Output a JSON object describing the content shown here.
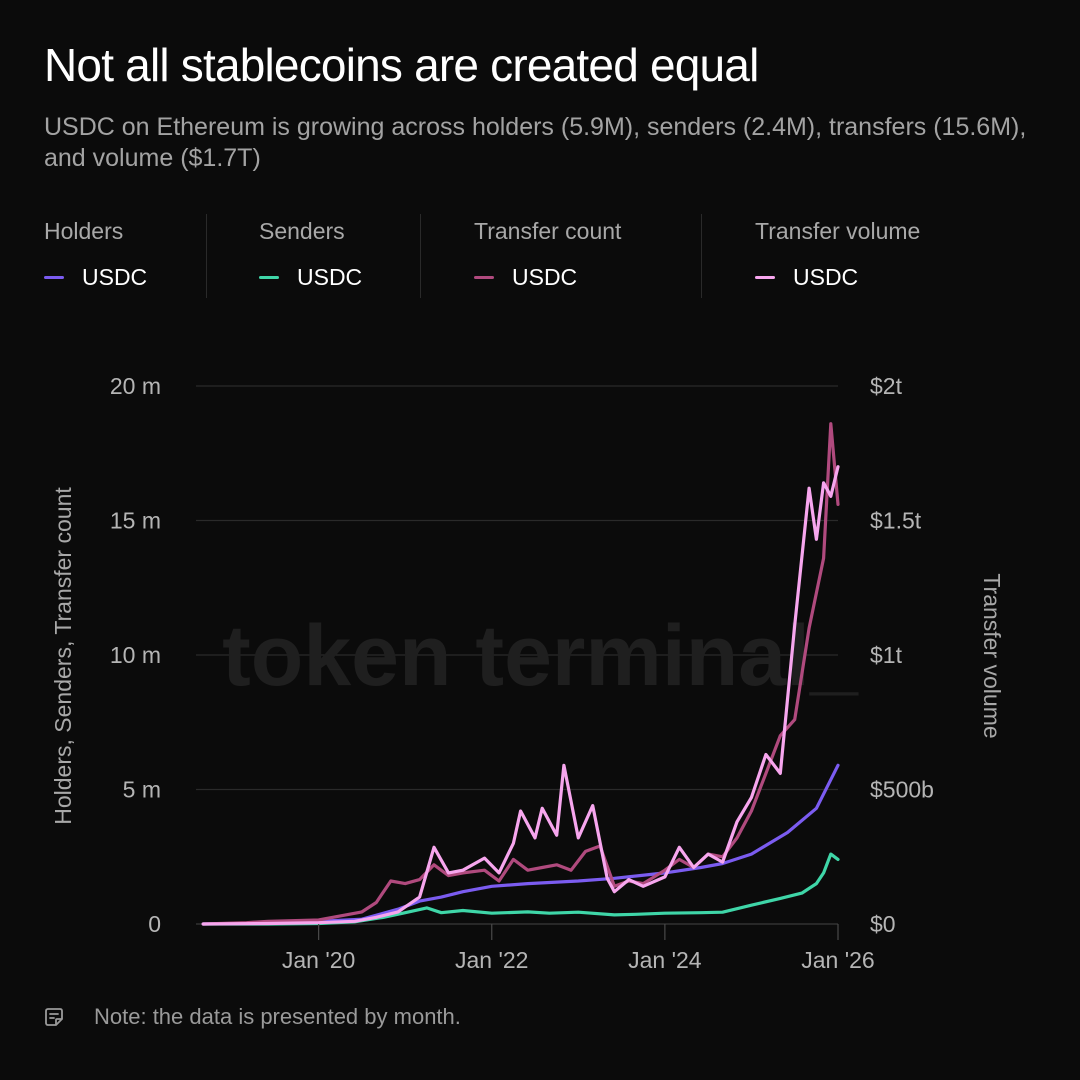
{
  "header": {
    "title": "Not all stablecoins are created equal",
    "subtitle": "USDC on Ethereum is growing across holders (5.9M), senders (2.4M), transfers (15.6M), and volume ($1.7T)"
  },
  "legend": [
    {
      "heading": "Holders",
      "label": "USDC",
      "color": "#7b5cf0"
    },
    {
      "heading": "Senders",
      "label": "USDC",
      "color": "#3fd6a8"
    },
    {
      "heading": "Transfer count",
      "label": "USDC",
      "color": "#b04a7e"
    },
    {
      "heading": "Transfer volume",
      "label": "USDC",
      "color": "#f7a6ee"
    }
  ],
  "watermark": "token terminal_",
  "note": {
    "text": "Note: the data is presented by month.",
    "icon": "note-icon"
  },
  "chart_data": {
    "type": "line",
    "x_start": "2018-08",
    "x_end": "2026-01",
    "x_ticks": [
      "Jan '20",
      "Jan '22",
      "Jan '24",
      "Jan '26"
    ],
    "y_left": {
      "label": "Holders, Senders, Transfer count",
      "ticks": [
        "0",
        "5 m",
        "10 m",
        "15 m",
        "20 m"
      ],
      "range": [
        0,
        20000000
      ]
    },
    "y_right": {
      "label": "Transfer volume",
      "ticks": [
        "$0",
        "$500b",
        "$1t",
        "$1.5t",
        "$2t"
      ],
      "range": [
        0,
        2000000000000
      ]
    },
    "grid": true,
    "series": [
      {
        "name": "Holders",
        "legend_label": "USDC",
        "color": "#7b5cf0",
        "axis": "left",
        "unit": "m",
        "points": [
          [
            "2018-09",
            0.0
          ],
          [
            "2019-01",
            0.02
          ],
          [
            "2019-07",
            0.06
          ],
          [
            "2020-01",
            0.1
          ],
          [
            "2020-07",
            0.18
          ],
          [
            "2020-12",
            0.55
          ],
          [
            "2021-03",
            0.85
          ],
          [
            "2021-06",
            1.0
          ],
          [
            "2021-09",
            1.2
          ],
          [
            "2022-01",
            1.4
          ],
          [
            "2022-06",
            1.5
          ],
          [
            "2023-01",
            1.6
          ],
          [
            "2023-06",
            1.7
          ],
          [
            "2024-01",
            1.9
          ],
          [
            "2024-06",
            2.1
          ],
          [
            "2024-09",
            2.25
          ],
          [
            "2025-01",
            2.6
          ],
          [
            "2025-06",
            3.4
          ],
          [
            "2025-10",
            4.3
          ],
          [
            "2026-01",
            5.9
          ]
        ]
      },
      {
        "name": "Senders",
        "legend_label": "USDC",
        "color": "#3fd6a8",
        "axis": "left",
        "unit": "m",
        "points": [
          [
            "2018-09",
            0.0
          ],
          [
            "2019-06",
            0.0
          ],
          [
            "2020-01",
            0.02
          ],
          [
            "2020-06",
            0.08
          ],
          [
            "2020-10",
            0.25
          ],
          [
            "2021-01",
            0.42
          ],
          [
            "2021-04",
            0.6
          ],
          [
            "2021-06",
            0.42
          ],
          [
            "2021-09",
            0.5
          ],
          [
            "2022-01",
            0.4
          ],
          [
            "2022-06",
            0.45
          ],
          [
            "2022-09",
            0.4
          ],
          [
            "2023-01",
            0.44
          ],
          [
            "2023-06",
            0.34
          ],
          [
            "2023-09",
            0.36
          ],
          [
            "2024-01",
            0.4
          ],
          [
            "2024-06",
            0.42
          ],
          [
            "2024-09",
            0.44
          ],
          [
            "2025-01",
            0.7
          ],
          [
            "2025-05",
            0.95
          ],
          [
            "2025-08",
            1.15
          ],
          [
            "2025-10",
            1.5
          ],
          [
            "2025-11",
            1.9
          ],
          [
            "2025-12",
            2.6
          ],
          [
            "2026-01",
            2.4
          ]
        ]
      },
      {
        "name": "Transfer count",
        "legend_label": "USDC",
        "color": "#b04a7e",
        "axis": "left",
        "unit": "m",
        "points": [
          [
            "2018-09",
            0.0
          ],
          [
            "2019-03",
            0.05
          ],
          [
            "2019-06",
            0.1
          ],
          [
            "2020-01",
            0.15
          ],
          [
            "2020-04",
            0.3
          ],
          [
            "2020-07",
            0.45
          ],
          [
            "2020-09",
            0.8
          ],
          [
            "2020-11",
            1.6
          ],
          [
            "2021-01",
            1.5
          ],
          [
            "2021-03",
            1.65
          ],
          [
            "2021-05",
            2.2
          ],
          [
            "2021-07",
            1.8
          ],
          [
            "2021-09",
            1.9
          ],
          [
            "2021-12",
            2.0
          ],
          [
            "2022-02",
            1.6
          ],
          [
            "2022-04",
            2.4
          ],
          [
            "2022-06",
            2.0
          ],
          [
            "2022-08",
            2.1
          ],
          [
            "2022-10",
            2.2
          ],
          [
            "2022-12",
            2.0
          ],
          [
            "2023-02",
            2.7
          ],
          [
            "2023-04",
            2.9
          ],
          [
            "2023-06",
            1.4
          ],
          [
            "2023-08",
            1.6
          ],
          [
            "2023-10",
            1.5
          ],
          [
            "2024-01",
            2.0
          ],
          [
            "2024-03",
            2.4
          ],
          [
            "2024-05",
            2.1
          ],
          [
            "2024-07",
            2.6
          ],
          [
            "2024-09",
            2.5
          ],
          [
            "2024-11",
            3.2
          ],
          [
            "2025-01",
            4.2
          ],
          [
            "2025-03",
            5.6
          ],
          [
            "2025-05",
            7.0
          ],
          [
            "2025-07",
            7.6
          ],
          [
            "2025-09",
            11.0
          ],
          [
            "2025-11",
            13.6
          ],
          [
            "2025-12",
            18.6
          ],
          [
            "2026-01",
            15.6
          ]
        ]
      },
      {
        "name": "Transfer volume",
        "legend_label": "USDC",
        "color": "#f7a6ee",
        "axis": "right",
        "unit": "b",
        "points": [
          [
            "2018-09",
            0
          ],
          [
            "2019-06",
            2
          ],
          [
            "2020-01",
            5
          ],
          [
            "2020-06",
            10
          ],
          [
            "2020-09",
            25
          ],
          [
            "2020-12",
            45
          ],
          [
            "2021-03",
            100
          ],
          [
            "2021-05",
            285
          ],
          [
            "2021-07",
            190
          ],
          [
            "2021-09",
            200
          ],
          [
            "2021-12",
            245
          ],
          [
            "2022-02",
            190
          ],
          [
            "2022-04",
            300
          ],
          [
            "2022-05",
            420
          ],
          [
            "2022-07",
            320
          ],
          [
            "2022-08",
            430
          ],
          [
            "2022-10",
            330
          ],
          [
            "2022-11",
            590
          ],
          [
            "2023-01",
            320
          ],
          [
            "2023-03",
            440
          ],
          [
            "2023-05",
            170
          ],
          [
            "2023-06",
            120
          ],
          [
            "2023-08",
            165
          ],
          [
            "2023-10",
            140
          ],
          [
            "2024-01",
            175
          ],
          [
            "2024-03",
            285
          ],
          [
            "2024-05",
            210
          ],
          [
            "2024-07",
            260
          ],
          [
            "2024-09",
            230
          ],
          [
            "2024-11",
            380
          ],
          [
            "2025-01",
            470
          ],
          [
            "2025-03",
            630
          ],
          [
            "2025-05",
            560
          ],
          [
            "2025-07",
            1110
          ],
          [
            "2025-09",
            1620
          ],
          [
            "2025-10",
            1430
          ],
          [
            "2025-11",
            1640
          ],
          [
            "2025-12",
            1590
          ],
          [
            "2026-01",
            1700
          ]
        ]
      }
    ]
  }
}
